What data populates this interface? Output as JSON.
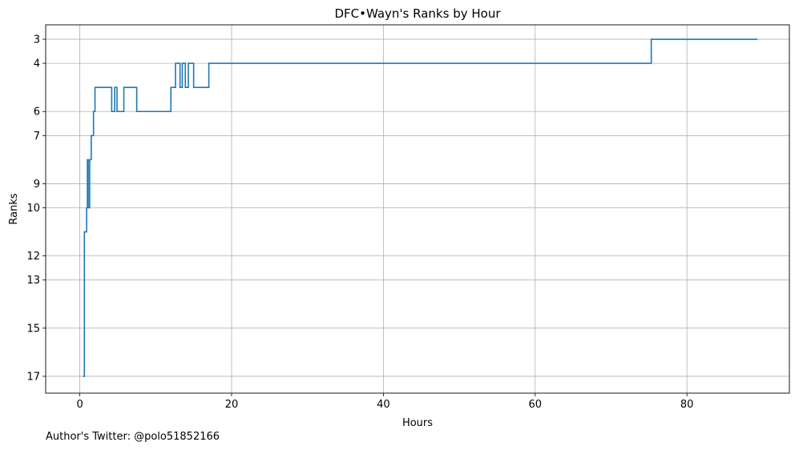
{
  "chart_data": {
    "type": "line",
    "title": "DFC•Wayn's Ranks by Hour",
    "xlabel": "Hours",
    "ylabel": "Ranks",
    "xlim": [
      -4.5,
      93.5
    ],
    "ylim": [
      17.7,
      2.4
    ],
    "y_inverted": true,
    "xticks": [
      0,
      20,
      40,
      60,
      80
    ],
    "yticks": [
      3,
      4,
      6,
      7,
      9,
      10,
      12,
      13,
      15,
      17
    ],
    "grid": true,
    "step": "post",
    "series": [
      {
        "color": "#1f77b4",
        "x": [
          0.4,
          0.6,
          0.9,
          1.0,
          1.1,
          1.3,
          1.5,
          1.8,
          2.0,
          2.3,
          4.2,
          4.6,
          4.9,
          5.3,
          5.8,
          7.5,
          12.0,
          12.6,
          13.2,
          13.5,
          13.9,
          14.3,
          15.0,
          15.3,
          17.0,
          75.3,
          89.3
        ],
        "y": [
          17,
          11,
          10,
          8,
          10,
          8,
          7,
          6,
          5,
          5,
          6,
          5,
          6,
          6,
          5,
          6,
          5,
          4,
          5,
          4,
          5,
          4,
          5,
          5,
          4,
          3,
          3
        ]
      }
    ]
  },
  "footer": {
    "text": "Author's Twitter: @polo51852166"
  }
}
